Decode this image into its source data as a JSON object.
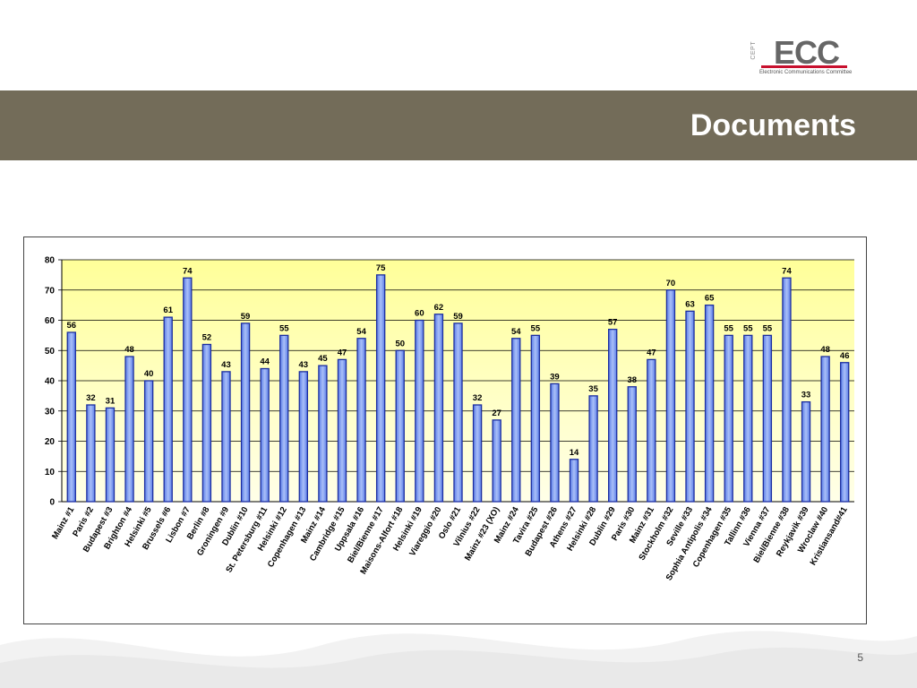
{
  "logo": {
    "cept": "CEPT",
    "main": "ECC",
    "subtitle": "Electronic Communications Committee"
  },
  "slide": {
    "title": "Documents",
    "page_number": "5"
  },
  "colors": {
    "banner": "#736c59",
    "bar_fill": "#7f9cf0",
    "bar_stroke": "#1c2ea0",
    "plot_top": "#ffff99",
    "plot_bottom": "#ffffe8"
  },
  "chart_data": {
    "type": "bar",
    "title": "",
    "xlabel": "",
    "ylabel": "",
    "ylim": [
      0,
      80
    ],
    "yticks": [
      0,
      10,
      20,
      30,
      40,
      50,
      60,
      70,
      80
    ],
    "grid": true,
    "categories": [
      "Mainz #1",
      "Paris #2",
      "Budapest #3",
      "Brighton #4",
      "Helsinki #5",
      "Brussels #6",
      "Lisbon #7",
      "Berlin #8",
      "Groningen #9",
      "Dublin #10",
      "St. Petersburg #11",
      "Helsinki #12",
      "Copenhagen #13",
      "Mainz #14",
      "Cambridge #15",
      "Uppsala #16",
      "Biel/Bienne #17",
      "Maisons-Alfort #18",
      "Helsinki #19",
      "Viareggio #20",
      "Oslo #21",
      "Vilnius #22",
      "Mainz #23 (XO)",
      "Mainz #24",
      "Tavira #25",
      "Budapest #26",
      "Athens #27",
      "Helsinki #28",
      "Dublin #29",
      "Paris #30",
      "Mainz #31",
      "Stockholm #32",
      "Seville #33",
      "Sophia Antipolis #34",
      "Copenhagen #35",
      "Tallinn #36",
      "Vienna #37",
      "Biel/Bienne #38",
      "Reykjavik #39",
      "Wroclaw #40",
      "Kristiansand#41"
    ],
    "values": [
      56,
      32,
      31,
      48,
      40,
      61,
      74,
      52,
      43,
      59,
      44,
      55,
      43,
      45,
      47,
      54,
      75,
      50,
      60,
      62,
      59,
      32,
      27,
      54,
      55,
      39,
      14,
      35,
      57,
      38,
      47,
      70,
      63,
      65,
      55,
      55,
      55,
      74,
      33,
      48,
      46
    ]
  }
}
